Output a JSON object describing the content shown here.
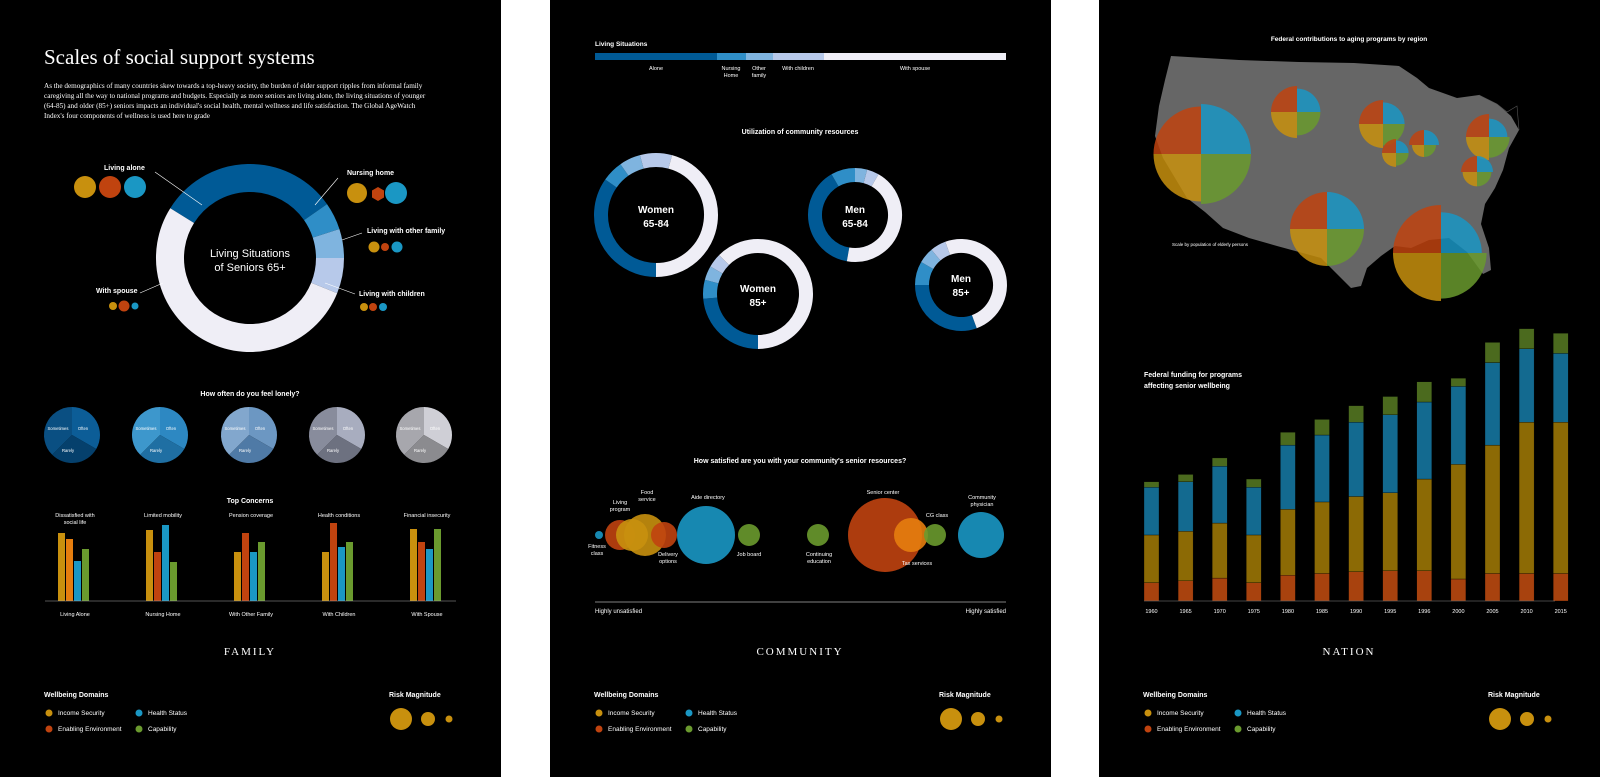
{
  "colors": {
    "income_security": "#c8900e",
    "enabling_environment": "#c0430f",
    "health_status": "#1a97c4",
    "capability": "#6a9a2e",
    "living_1": "#005a96",
    "living_2": "#2f8ec7",
    "living_3": "#7fb4df",
    "living_4": "#b7c9ea",
    "living_5": "#efeef6"
  },
  "family": {
    "title": "Scales of social support systems",
    "intro": [
      "As the demographics of many countries skew towards a top-heavy society, the burden of elder support ripples from informal family",
      "caregiving all the way to national programs and budgets. Especially as more seniors are living alone, the living situations of younger",
      "(64-85) and older (85+) seniors impacts an individual's social health, mental wellness and life satisfaction. The Global AgeWatch",
      "Index's four components of wellness is used here to grade"
    ],
    "donut": {
      "center_line1": "Living Situations",
      "center_line2": "of Seniors 65+",
      "labels": {
        "living_alone": "Living alone",
        "nursing_home": "Nursing home",
        "other_family": "Living with other family",
        "children": "Living with children",
        "spouse": "With spouse"
      }
    },
    "lonely": {
      "title": "How often do you feel lonely?",
      "pies": [
        {
          "labels": [
            "Sometimes",
            "Often",
            "Rarely"
          ]
        },
        {
          "labels": [
            "Sometimes",
            "Often",
            "Rarely"
          ]
        },
        {
          "labels": [
            "Sometimes",
            "Often",
            "Rarely"
          ]
        },
        {
          "labels": [
            "Sometimes",
            "Often",
            "Rarely"
          ]
        },
        {
          "labels": [
            "Sometimes",
            "Often",
            "Rarely"
          ]
        }
      ]
    },
    "concerns": {
      "title": "Top Concerns",
      "top_labels": [
        [
          "Dissatisfied with",
          "social life"
        ],
        [
          "Limited mobility"
        ],
        [
          "Pension coverage"
        ],
        [
          "Health conditions"
        ],
        [
          "Financial insecurity"
        ]
      ],
      "bottom_labels": [
        "Living Alone",
        "Nursing Home",
        "With Other Family",
        "With Children",
        "With Spouse"
      ]
    },
    "section": "FAMILY",
    "legend": {
      "title": "Wellbeing Domains",
      "items": [
        "Income Security",
        "Health Status",
        "Enabling Environment",
        "Capability"
      ],
      "risk": "Risk Magnitude"
    }
  },
  "community": {
    "living_bar": {
      "title": "Living Situations",
      "labels": [
        [
          "Alone"
        ],
        [
          "Nursing",
          "Home"
        ],
        [
          "Other",
          "family"
        ],
        [
          "With children"
        ],
        [
          "With spouse"
        ]
      ]
    },
    "utilization_title": "Utilization of community resources",
    "rings": [
      {
        "line1": "Women",
        "line2": "65-84"
      },
      {
        "line1": "Men",
        "line2": "65-84"
      },
      {
        "line1": "Women",
        "line2": "85+"
      },
      {
        "line1": "Men",
        "line2": "85+"
      }
    ],
    "satisfaction": {
      "title": "How satisfied are you with your community's senior resources?",
      "labels": {
        "fitness": [
          "Fitness",
          "class"
        ],
        "daily": [
          "Living",
          "program"
        ],
        "food": [
          "Food",
          "service"
        ],
        "delivery": [
          "Delivery",
          "options"
        ],
        "directory": [
          "Aide directory"
        ],
        "job_board": [
          "Job board"
        ],
        "continuing": [
          "Continuing",
          "education"
        ],
        "senior_center": [
          "Senior center"
        ],
        "cg_class": [
          "CG class"
        ],
        "community_physician": [
          "Community",
          "physician"
        ],
        "tax": [
          "Tax services"
        ]
      },
      "axis_left": "Highly unsatisfied",
      "axis_right": "Highly satisfied"
    },
    "section": "COMMUNITY",
    "legend": {
      "title": "Wellbeing Domains",
      "items": [
        "Income Security",
        "Health Status",
        "Enabling Environment",
        "Capability"
      ],
      "risk": "Risk Magnitude"
    }
  },
  "nation": {
    "map_title": "Federal contributions to aging programs by region",
    "map_note": "Scale by population of elderly persons",
    "chart_title": [
      "Federal funding for programs",
      "affecting senior wellbeing"
    ],
    "section": "NATION",
    "legend": {
      "title": "Wellbeing Domains",
      "items": [
        "Income Security",
        "Health Status",
        "Enabling Environment",
        "Capability"
      ],
      "risk": "Risk Magnitude"
    }
  },
  "chart_data": {
    "type": "bar",
    "stacked": true,
    "title": "Federal funding for programs affecting senior wellbeing",
    "categories": [
      "1960",
      "1965",
      "1970",
      "1975",
      "1980",
      "1985",
      "1990",
      "1995",
      "1996",
      "2000",
      "2005",
      "2010",
      "2015"
    ],
    "series": [
      {
        "name": "Enabling Environment",
        "values": [
          20,
          22,
          25,
          20,
          28,
          30,
          32,
          33,
          33,
          24,
          30,
          30,
          30
        ]
      },
      {
        "name": "Income Security",
        "values": [
          52,
          54,
          60,
          52,
          72,
          78,
          82,
          85,
          100,
          125,
          140,
          165,
          165
        ]
      },
      {
        "name": "Health Status",
        "values": [
          52,
          54,
          62,
          52,
          70,
          73,
          81,
          85,
          84,
          85,
          90,
          80,
          75
        ]
      },
      {
        "name": "Capability",
        "values": [
          6,
          8,
          9,
          9,
          14,
          17,
          18,
          20,
          22,
          9,
          22,
          22,
          22
        ]
      }
    ]
  }
}
